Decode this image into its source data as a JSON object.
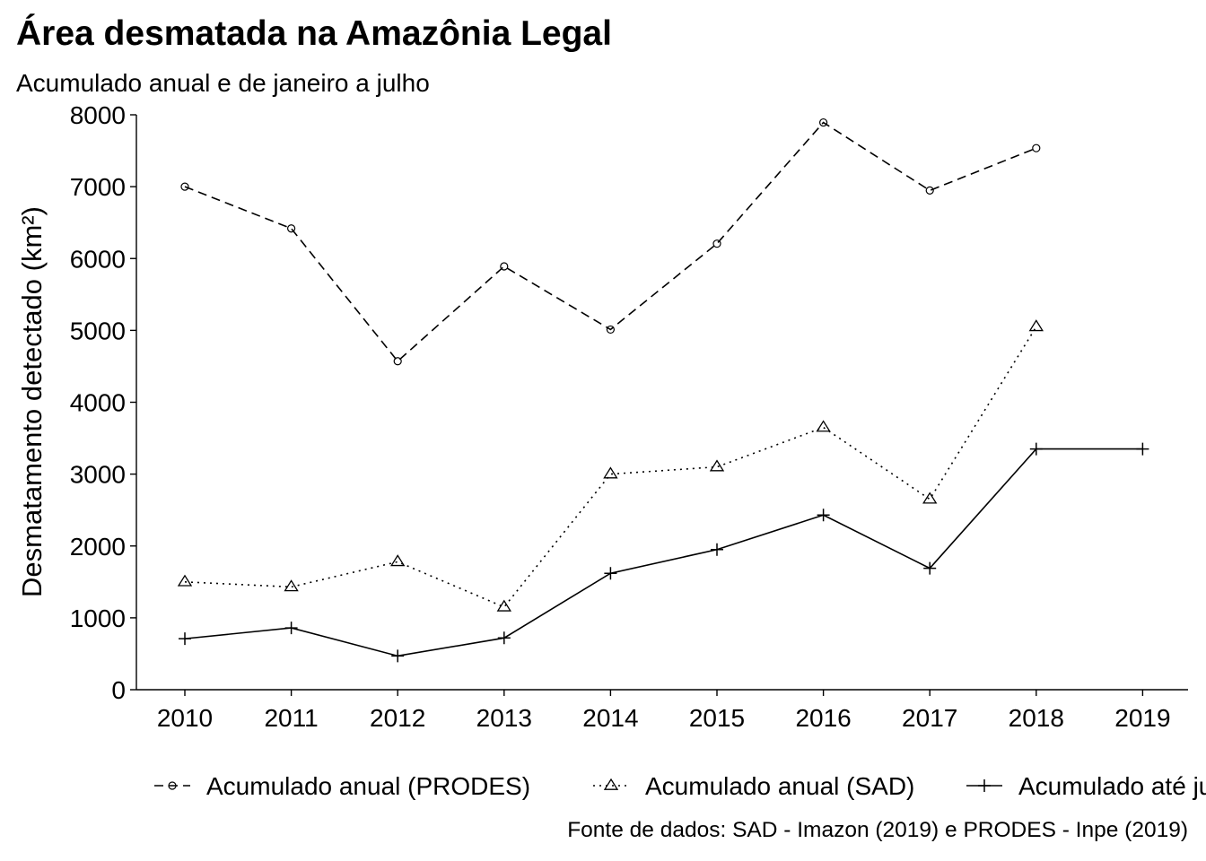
{
  "chart_data": {
    "type": "line",
    "title": "Área desmatada na Amazônia Legal",
    "subtitle": "Acumulado anual e de janeiro a julho",
    "xlabel": "",
    "ylabel": "Desmatamento detectado (km²)",
    "caption": "Fonte de dados: SAD - Imazon (2019) e PRODES - Inpe (2019)",
    "categories": [
      "2010",
      "2011",
      "2012",
      "2013",
      "2014",
      "2015",
      "2016",
      "2017",
      "2018",
      "2019"
    ],
    "ylim": [
      0,
      8000
    ],
    "yticks": [
      "0",
      "1000",
      "2000",
      "3000",
      "4000",
      "5000",
      "6000",
      "7000",
      "8000"
    ],
    "grid": false,
    "legend_position": "bottom",
    "series": [
      {
        "name": "Acumulado anual (PRODES)",
        "line_style": "dashed",
        "marker": "circle",
        "values": [
          7000,
          6418,
          4571,
          5891,
          5012,
          6207,
          7893,
          6947,
          7536,
          null
        ]
      },
      {
        "name": "Acumulado anual (SAD)",
        "line_style": "dotted",
        "marker": "triangle",
        "values": [
          1500,
          1430,
          1780,
          1150,
          3000,
          3100,
          3650,
          2650,
          5050,
          null
        ]
      },
      {
        "name": "Acumulado até julho (SAD)",
        "line_style": "solid",
        "marker": "plus",
        "values": [
          710,
          860,
          470,
          720,
          1620,
          1950,
          2430,
          1690,
          3350,
          3350
        ]
      }
    ]
  }
}
